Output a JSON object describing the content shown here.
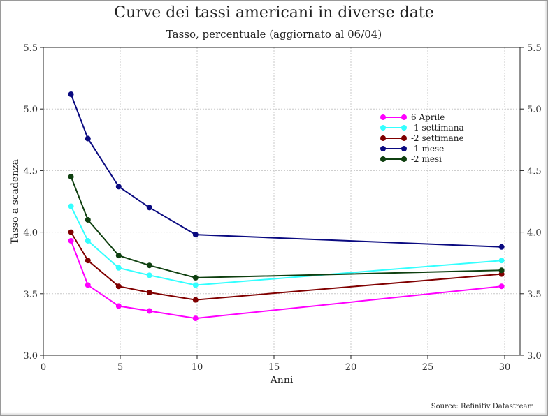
{
  "chart_data": {
    "type": "line",
    "title": "Curve dei tassi americani in diverse date",
    "subtitle": "Tasso, percentuale (aggiornato al 06/04)",
    "xlabel": "Anni",
    "ylabel": "Tasso a scadenza",
    "xlim": [
      0,
      31
    ],
    "ylim": [
      3.0,
      5.5
    ],
    "xticks": [
      0,
      5,
      10,
      15,
      20,
      25,
      30
    ],
    "yticks": [
      3.0,
      3.5,
      4.0,
      4.5,
      5.0,
      5.5
    ],
    "ytick_labels": [
      "3.0",
      "3.5",
      "4.0",
      "4.5",
      "5.0",
      "5.5"
    ],
    "grid": true,
    "legend_position": "top-right",
    "x": [
      1.8,
      2.9,
      4.9,
      6.9,
      9.9,
      29.8
    ],
    "series": [
      {
        "name": "6 Aprile",
        "color": "#ff00ff",
        "values": [
          3.93,
          3.57,
          3.4,
          3.36,
          3.3,
          3.56
        ]
      },
      {
        "name": "-1 settimana",
        "color": "#33ffff",
        "values": [
          4.21,
          3.93,
          3.71,
          3.65,
          3.57,
          3.77
        ]
      },
      {
        "name": "-2 settimane",
        "color": "#800000",
        "values": [
          4.0,
          3.77,
          3.56,
          3.51,
          3.45,
          3.66
        ]
      },
      {
        "name": "-1 mese",
        "color": "#0a0a80",
        "values": [
          5.12,
          4.76,
          4.37,
          4.2,
          3.98,
          3.88
        ]
      },
      {
        "name": "-2 mesi",
        "color": "#0f4010",
        "values": [
          4.45,
          4.1,
          3.81,
          3.73,
          3.63,
          3.69
        ]
      }
    ]
  },
  "source": "Source: Refinitiv Datastream"
}
